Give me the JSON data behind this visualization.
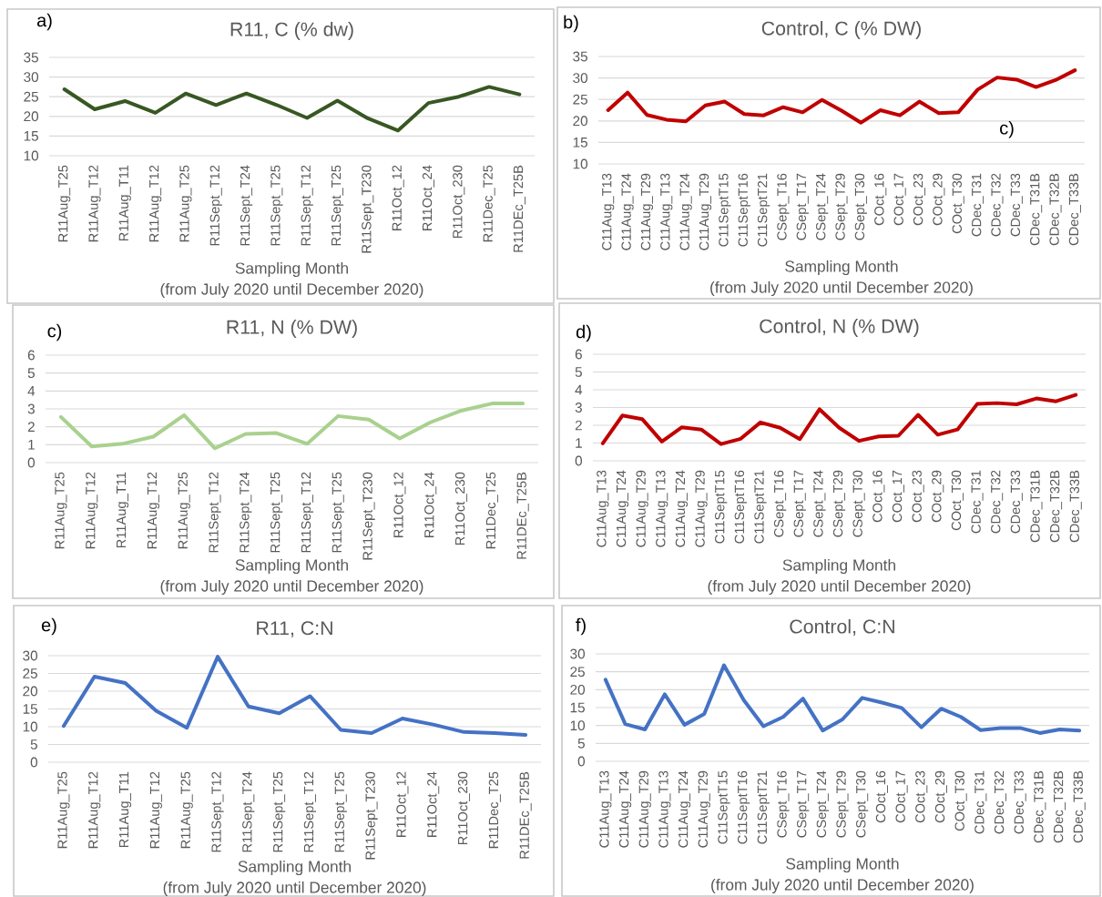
{
  "chart_data": [
    {
      "type": "line",
      "title": "R11, C (% dw)",
      "xlabel": "Sampling Month",
      "annotations": [
        "a)",
        "(from July 2020 until December 2020)"
      ],
      "categories": [
        "R11Aug_T25",
        "R11Aug_T12",
        "R11Aug_T11",
        "R11Aug_T12",
        "R11Aug_T25",
        "R11Sept_T12",
        "R11Sept_T24",
        "R11Sept_T25",
        "R11Sept_T12",
        "R11Sept_T25",
        "R11Sept_T230",
        "R11Oct_12",
        "R11Oct_24",
        "R11Oct_230",
        "R11Dec_T25",
        "R11DEc_T25B"
      ],
      "series": [
        {
          "color": "#385723",
          "values": [
            26.9,
            21.8,
            23.9,
            20.9,
            25.8,
            22.9,
            25.8,
            22.9,
            19.6,
            24.0,
            19.5,
            16.4,
            23.4,
            25.0,
            27.5,
            25.6
          ]
        }
      ],
      "ylim": [
        10,
        35
      ],
      "yticks": [
        10,
        15,
        20,
        25,
        30,
        35
      ],
      "grid": "y"
    },
    {
      "type": "line",
      "title": "Control, C (% DW)",
      "xlabel": "Sampling Month",
      "annotations": [
        "b)",
        "(from July 2020 until December 2020)",
        "c)"
      ],
      "categories": [
        "C11Aug_T13",
        "C11Aug_T24",
        "C11Aug_T29",
        "C11Aug_T13",
        "C11Aug_T24",
        "C11Aug_T29",
        "C11SeptT15",
        "C11SeptT16",
        "C11SeptT21",
        "CSept_T16",
        "CSept_T17",
        "CSept_T24",
        "CSept_T29",
        "CSept_T30",
        "COct_16",
        "COct_17",
        "COct_23",
        "COct_29",
        "COct_T30",
        "CDec_T31",
        "CDec_T32",
        "CDec_T33",
        "CDec_T31B",
        "CDec_T32B",
        "CDec_T33B"
      ],
      "series": [
        {
          "color": "#c00000",
          "values": [
            22.5,
            26.6,
            21.4,
            20.3,
            19.9,
            23.6,
            24.5,
            21.6,
            21.3,
            23.2,
            22.0,
            24.9,
            22.4,
            19.6,
            22.5,
            21.3,
            24.5,
            21.8,
            22.0,
            27.3,
            30.1,
            29.6,
            27.9,
            29.5,
            31.8
          ]
        }
      ],
      "ylim": [
        10,
        35
      ],
      "yticks": [
        10,
        15,
        20,
        25,
        30,
        35
      ],
      "grid": "y"
    },
    {
      "type": "line",
      "title": "R11, N (% DW)",
      "xlabel": "Sampling Month",
      "annotations": [
        "c)",
        "(from July 2020 until December 2020)"
      ],
      "categories": [
        "R11Aug_T25",
        "R11Aug_T12",
        "R11Aug_T11",
        "R11Aug_T12",
        "R11Aug_T25",
        "R11Sept_T12",
        "R11Sept_T24",
        "R11Sept_T25",
        "R11Sept_T12",
        "R11Sept_T25",
        "R11Sept_T230",
        "R11Oct_12",
        "R11Oct_24",
        "R11Oct_230",
        "R11Dec_T25",
        "R11DEc_T25B"
      ],
      "series": [
        {
          "color": "#a9d18e",
          "values": [
            2.55,
            0.9,
            1.05,
            1.45,
            2.65,
            0.8,
            1.6,
            1.65,
            1.05,
            2.6,
            2.4,
            1.35,
            2.25,
            2.9,
            3.3,
            3.3
          ]
        }
      ],
      "ylim": [
        0,
        6
      ],
      "yticks": [
        0,
        1,
        2,
        3,
        4,
        5,
        6
      ],
      "grid": "y"
    },
    {
      "type": "line",
      "title": "Control, N (% DW)",
      "xlabel": "Sampling Month",
      "annotations": [
        "d)",
        "(from July 2020 until December 2020)"
      ],
      "categories": [
        "C11Aug_T13",
        "C11Aug_T24",
        "C11Aug_T29",
        "C11Aug_T13",
        "C11Aug_T24",
        "C11Aug_T29",
        "C11SeptT15",
        "C11SeptT16",
        "C11SeptT21",
        "CSept_T16",
        "CSept_T17",
        "CSept_T24",
        "CSept_T29",
        "CSept_T30",
        "COct_16",
        "COct_17",
        "COct_23",
        "COct_29",
        "COct_T30",
        "CDec_T31",
        "CDec_T32",
        "CDec_T33",
        "CDec_T31B",
        "CDec_T32B",
        "CDec_T33B"
      ],
      "series": [
        {
          "color": "#c00000",
          "values": [
            0.98,
            2.55,
            2.35,
            1.08,
            1.88,
            1.76,
            0.94,
            1.24,
            2.16,
            1.86,
            1.22,
            2.9,
            1.86,
            1.12,
            1.37,
            1.41,
            2.59,
            1.47,
            1.76,
            3.2,
            3.25,
            3.18,
            3.51,
            3.35,
            3.71
          ]
        }
      ],
      "ylim": [
        0,
        6
      ],
      "yticks": [
        0,
        1,
        2,
        3,
        4,
        5,
        6
      ],
      "grid": "y"
    },
    {
      "type": "line",
      "title": "R11, C:N",
      "xlabel": "Sampling Month",
      "annotations": [
        "e)",
        "(from July 2020 until December 2020)"
      ],
      "categories": [
        "R11Aug_T25",
        "R11Aug_T12",
        "R11Aug_T11",
        "R11Aug_T12",
        "R11Aug_T25",
        "R11Sept_T12",
        "R11Sept_T24",
        "R11Sept_T25",
        "R11Sept_T12",
        "R11Sept_T25",
        "R11Sept_T230",
        "R11Oct_12",
        "R11Oct_24",
        "R11Oct_230",
        "R11Dec_T25",
        "R11DEc_T25B"
      ],
      "series": [
        {
          "color": "#4472c4",
          "values": [
            10.2,
            24.1,
            22.3,
            14.5,
            9.7,
            29.7,
            15.7,
            13.8,
            18.6,
            9.1,
            8.2,
            12.3,
            10.6,
            8.5,
            8.2,
            7.7
          ]
        }
      ],
      "ylim": [
        0,
        30
      ],
      "yticks": [
        0,
        5,
        10,
        15,
        20,
        25,
        30
      ],
      "grid": "y"
    },
    {
      "type": "line",
      "title": "Control, C:N",
      "xlabel": "Sampling Month",
      "annotations": [
        "f)",
        "(from July 2020 until December 2020)"
      ],
      "categories": [
        "C11Aug_T13",
        "C11Aug_T24",
        "C11Aug_T29",
        "C11Aug_T13",
        "C11Aug_T24",
        "C11Aug_T29",
        "C11SeptT15",
        "C11SeptT16",
        "C11SeptT21",
        "CSept_T16",
        "CSept_T17",
        "CSept_T24",
        "CSept_T29",
        "CSept_T30",
        "COct_16",
        "COct_17",
        "COct_23",
        "COct_29",
        "COct_T30",
        "CDec_T31",
        "CDec_T32",
        "CDec_T33",
        "CDec_T31B",
        "CDec_T32B",
        "CDec_T33B"
      ],
      "series": [
        {
          "color": "#4472c4",
          "values": [
            22.8,
            10.4,
            8.9,
            18.7,
            10.2,
            13.2,
            26.8,
            17.1,
            9.8,
            12.4,
            17.5,
            8.6,
            11.7,
            17.7,
            16.4,
            14.9,
            9.5,
            14.7,
            12.4,
            8.7,
            9.3,
            9.3,
            7.9,
            8.9,
            8.6
          ]
        }
      ],
      "ylim": [
        0,
        30
      ],
      "yticks": [
        0,
        5,
        10,
        15,
        20,
        25,
        30
      ],
      "grid": "y"
    }
  ]
}
